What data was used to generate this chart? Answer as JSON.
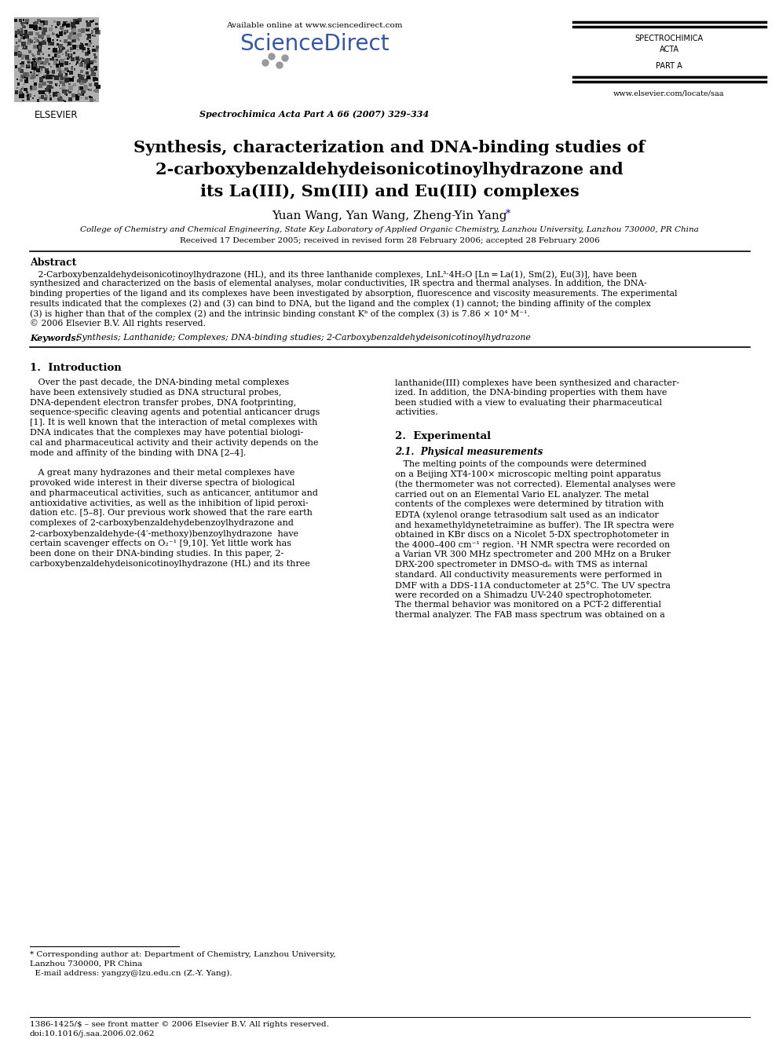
{
  "bg_color": "#ffffff",
  "available_online": "Available online at www.sciencedirect.com",
  "sciencedirect": "ScienceDirect",
  "journal_ref": "Spectrochimica Acta Part A 66 (2007) 329–334",
  "spectrochimica_line1": "SPECTROCHIMICA",
  "spectrochimica_line2": "ACTA",
  "spectrochimica_line3": "PART A",
  "website": "www.elsevier.com/locate/saa",
  "elsevier": "ELSEVIER",
  "title_line1": "Synthesis, characterization and DNA-binding studies of",
  "title_line2": "2-carboxybenzaldehydeisonicotinoylhydrazone and",
  "title_line3": "its La(III), Sm(III) and Eu(III) complexes",
  "authors_main": "Yuan Wang, Yan Wang, Zheng-Yin Yang",
  "authors_star": "*",
  "affiliation": "College of Chemistry and Chemical Engineering, State Key Laboratory of Applied Organic Chemistry, Lanzhou University, Lanzhou 730000, PR China",
  "received": "Received 17 December 2005; received in revised form 28 February 2006; accepted 28 February 2006",
  "abstract_heading": "Abstract",
  "abstract_lines": [
    "   2-Carboxybenzaldehydeisonicotinoylhydrazone (HL), and its three lanthanide complexes, LnL³·4H₂O [Ln = La(1), Sm(2), Eu(3)], have been",
    "synthesized and characterized on the basis of elemental analyses, molar conductivities, IR spectra and thermal analyses. In addition, the DNA-",
    "binding properties of the ligand and its complexes have been investigated by absorption, fluorescence and viscosity measurements. The experimental",
    "results indicated that the complexes (2) and (3) can bind to DNA, but the ligand and the complex (1) cannot; the binding affinity of the complex",
    "(3) is higher than that of the complex (2) and the intrinsic binding constant Kᵇ of the complex (3) is 7.86 × 10⁴ M⁻¹.",
    "© 2006 Elsevier B.V. All rights reserved."
  ],
  "keywords_label": "Keywords:",
  "keywords_text": "  Synthesis; Lanthanide; Complexes; DNA-binding studies; 2-Carboxybenzaldehydeisonicotinoylhydrazone",
  "s1_heading": "1.  Introduction",
  "s1_col1_lines": [
    "   Over the past decade, the DNA-binding metal complexes",
    "have been extensively studied as DNA structural probes,",
    "DNA-dependent electron transfer probes, DNA footprinting,",
    "sequence-specific cleaving agents and potential anticancer drugs",
    "[1]. It is well known that the interaction of metal complexes with",
    "DNA indicates that the complexes may have potential biologi-",
    "cal and pharmaceutical activity and their activity depends on the",
    "mode and affinity of the binding with DNA [2–4].",
    "",
    "   A great many hydrazones and their metal complexes have",
    "provoked wide interest in their diverse spectra of biological",
    "and pharmaceutical activities, such as anticancer, antitumor and",
    "antioxidative activities, as well as the inhibition of lipid peroxi-",
    "dation etc. [5–8]. Our previous work showed that the rare earth",
    "complexes of 2-carboxybenzaldehydebenzoylhydrazone and",
    "2-carboxybenzaldehyde-(4′-methoxy)benzoylhydrazone  have",
    "certain scavenger effects on O₂⁻¹ [9,10]. Yet little work has",
    "been done on their DNA-binding studies. In this paper, 2-",
    "carboxybenzaldehydeisonicotinoylhydrazone (HL) and its three"
  ],
  "s1_col2_lines": [
    "lanthanide(III) complexes have been synthesized and character-",
    "ized. In addition, the DNA-binding properties with them have",
    "been studied with a view to evaluating their pharmaceutical",
    "activities."
  ],
  "s2_heading": "2.  Experimental",
  "s21_heading": "2.1.  Physical measurements",
  "s21_lines": [
    "   The melting points of the compounds were determined",
    "on a Beijing XT4-100× microscopic melting point apparatus",
    "(the thermometer was not corrected). Elemental analyses were",
    "carried out on an Elemental Vario EL analyzer. The metal",
    "contents of the complexes were determined by titration with",
    "EDTA (xylenol orange tetrasodium salt used as an indicator",
    "and hexamethyldynetetraimine as buffer). The IR spectra were",
    "obtained in KBr discs on a Nicolet 5-DX spectrophotometer in",
    "the 4000–400 cm⁻¹ region. ¹H NMR spectra were recorded on",
    "a Varian VR 300 MHz spectrometer and 200 MHz on a Bruker",
    "DRX-200 spectrometer in DMSO-d₆ with TMS as internal",
    "standard. All conductivity measurements were performed in",
    "DMF with a DDS-11A conductometer at 25°C. The UV spectra",
    "were recorded on a Shimadzu UV-240 spectrophotometer.",
    "The thermal behavior was monitored on a PCT-2 differential",
    "thermal analyzer. The FAB mass spectrum was obtained on a"
  ],
  "footnote_lines": [
    "* Corresponding author at: Department of Chemistry, Lanzhou University,",
    "Lanzhou 730000, PR China",
    "  E-mail address: yangzy@lzu.edu.cn (Z.-Y. Yang)."
  ],
  "footer_line1": "1386-1425/$ – see front matter © 2006 Elsevier B.V. All rights reserved.",
  "footer_line2": "doi:10.1016/j.saa.2006.02.062"
}
